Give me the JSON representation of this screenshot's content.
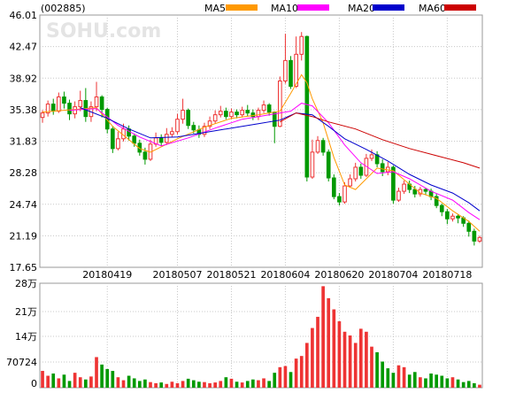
{
  "header": {
    "code": "(002885)",
    "watermark": "SOHU.com",
    "legend": [
      {
        "label": "MA5",
        "color": "#ff9900"
      },
      {
        "label": "MA10",
        "color": "#ff00ff"
      },
      {
        "label": "MA20",
        "color": "#0000cc"
      },
      {
        "label": "MA60",
        "color": "#cc0000"
      }
    ]
  },
  "chart_data": [
    {
      "type": "candlestick",
      "y_ticks": [
        "46.01",
        "42.47",
        "38.92",
        "35.38",
        "31.83",
        "28.28",
        "24.74",
        "21.19",
        "17.65"
      ],
      "ylim": [
        17.65,
        46.01
      ],
      "x_ticks": [
        {
          "label": "20180419",
          "index": 12
        },
        {
          "label": "20180507",
          "index": 25
        },
        {
          "label": "20180521",
          "index": 35
        },
        {
          "label": "20180604",
          "index": 45
        },
        {
          "label": "20180620",
          "index": 55
        },
        {
          "label": "20180704",
          "index": 65
        },
        {
          "label": "20180718",
          "index": 75
        }
      ],
      "colors": {
        "up": "#ee3333",
        "down": "#009900"
      },
      "candles": [
        [
          34.5,
          35.0,
          33.9,
          35.3
        ],
        [
          35.0,
          36.0,
          34.6,
          36.4
        ],
        [
          36.0,
          35.2,
          34.8,
          36.6
        ],
        [
          35.2,
          36.8,
          35.0,
          37.3
        ],
        [
          36.8,
          36.1,
          35.5,
          37.4
        ],
        [
          36.1,
          34.9,
          34.2,
          36.5
        ],
        [
          34.9,
          35.7,
          34.4,
          36.3
        ],
        [
          35.7,
          36.4,
          35.2,
          37.5
        ],
        [
          36.4,
          34.6,
          34.0,
          37.8
        ],
        [
          34.6,
          35.7,
          34.0,
          36.3
        ],
        [
          35.7,
          36.8,
          35.2,
          38.5
        ],
        [
          36.8,
          35.4,
          34.5,
          37.0
        ],
        [
          35.4,
          33.2,
          32.7,
          35.6
        ],
        [
          33.2,
          31.0,
          30.5,
          33.5
        ],
        [
          31.0,
          32.1,
          30.8,
          32.9
        ],
        [
          32.1,
          33.2,
          31.8,
          33.8
        ],
        [
          33.2,
          32.4,
          31.9,
          33.6
        ],
        [
          32.4,
          31.6,
          31.2,
          32.7
        ],
        [
          31.6,
          30.6,
          30.2,
          32.0
        ],
        [
          30.6,
          29.8,
          29.2,
          31.1
        ],
        [
          29.8,
          31.5,
          29.6,
          32.0
        ],
        [
          31.5,
          32.2,
          31.2,
          32.8
        ],
        [
          32.2,
          31.7,
          31.3,
          32.6
        ],
        [
          31.7,
          32.6,
          31.4,
          33.3
        ],
        [
          32.6,
          32.9,
          32.3,
          33.4
        ],
        [
          32.9,
          34.3,
          32.6,
          34.9
        ],
        [
          34.3,
          35.3,
          33.8,
          36.6
        ],
        [
          35.3,
          33.6,
          33.2,
          35.5
        ],
        [
          33.6,
          33.1,
          32.7,
          34.0
        ],
        [
          33.1,
          32.6,
          32.2,
          33.6
        ],
        [
          32.6,
          33.5,
          32.3,
          33.9
        ],
        [
          33.5,
          34.1,
          33.2,
          34.6
        ],
        [
          34.1,
          34.8,
          33.8,
          35.3
        ],
        [
          34.8,
          35.2,
          34.5,
          35.8
        ],
        [
          35.2,
          34.6,
          34.3,
          35.6
        ],
        [
          34.6,
          35.1,
          34.3,
          35.5
        ],
        [
          35.1,
          34.8,
          34.4,
          35.4
        ],
        [
          34.8,
          35.3,
          34.5,
          35.7
        ],
        [
          35.3,
          35.0,
          34.6,
          35.9
        ],
        [
          35.0,
          34.6,
          34.2,
          35.4
        ],
        [
          34.6,
          35.3,
          34.2,
          35.6
        ],
        [
          35.3,
          35.9,
          35.0,
          36.4
        ],
        [
          35.9,
          35.1,
          34.7,
          36.1
        ],
        [
          35.1,
          33.5,
          31.6,
          35.2
        ],
        [
          33.5,
          38.6,
          33.4,
          39.1
        ],
        [
          38.6,
          40.9,
          38.3,
          43.9
        ],
        [
          40.9,
          38.0,
          37.7,
          41.4
        ],
        [
          38.0,
          41.6,
          37.8,
          43.6
        ],
        [
          41.6,
          43.6,
          40.9,
          44.1
        ],
        [
          43.6,
          27.8,
          27.3,
          43.7
        ],
        [
          27.8,
          30.6,
          27.6,
          32.0
        ],
        [
          30.6,
          31.9,
          30.4,
          32.4
        ],
        [
          31.9,
          30.6,
          30.2,
          32.2
        ],
        [
          30.6,
          27.7,
          27.3,
          30.9
        ],
        [
          27.7,
          25.6,
          25.3,
          28.1
        ],
        [
          25.6,
          25.0,
          24.6,
          26.0
        ],
        [
          25.0,
          26.8,
          24.8,
          27.2
        ],
        [
          26.8,
          27.6,
          26.6,
          28.1
        ],
        [
          27.6,
          28.9,
          27.3,
          29.4
        ],
        [
          28.9,
          28.0,
          27.6,
          29.3
        ],
        [
          28.0,
          29.9,
          27.8,
          30.4
        ],
        [
          29.9,
          30.3,
          29.6,
          30.9
        ],
        [
          30.3,
          29.3,
          28.9,
          30.7
        ],
        [
          29.3,
          28.4,
          27.9,
          29.8
        ],
        [
          28.4,
          28.9,
          28.0,
          29.5
        ],
        [
          28.9,
          25.2,
          24.8,
          29.1
        ],
        [
          25.2,
          26.2,
          25.0,
          26.6
        ],
        [
          26.2,
          27.0,
          25.9,
          27.4
        ],
        [
          27.0,
          26.4,
          26.0,
          27.4
        ],
        [
          26.4,
          25.9,
          25.5,
          26.8
        ],
        [
          25.9,
          26.4,
          25.6,
          26.7
        ],
        [
          26.4,
          26.2,
          25.8,
          26.6
        ],
        [
          26.2,
          25.6,
          25.2,
          26.5
        ],
        [
          25.6,
          24.6,
          24.3,
          25.9
        ],
        [
          24.6,
          23.9,
          23.4,
          24.8
        ],
        [
          23.9,
          23.1,
          22.5,
          24.2
        ],
        [
          23.1,
          23.4,
          22.8,
          23.7
        ],
        [
          23.4,
          23.2,
          22.6,
          23.6
        ],
        [
          23.2,
          22.6,
          22.2,
          23.4
        ],
        [
          22.6,
          21.7,
          21.1,
          22.9
        ],
        [
          21.7,
          20.6,
          20.1,
          22.0
        ],
        [
          20.6,
          21.0,
          20.4,
          21.2
        ]
      ],
      "ma": {
        "MA5": [
          [
            0,
            35.1
          ],
          [
            10,
            35.6
          ],
          [
            13,
            33.5
          ],
          [
            18,
            31.0
          ],
          [
            20,
            30.6
          ],
          [
            25,
            32.1
          ],
          [
            30,
            33.4
          ],
          [
            35,
            34.4
          ],
          [
            40,
            34.8
          ],
          [
            44,
            35.2
          ],
          [
            46,
            37.2
          ],
          [
            48,
            39.3
          ],
          [
            49,
            38.4
          ],
          [
            50,
            36.6
          ],
          [
            52,
            33.9
          ],
          [
            54,
            30.0
          ],
          [
            56,
            26.9
          ],
          [
            58,
            26.4
          ],
          [
            60,
            27.6
          ],
          [
            62,
            28.8
          ],
          [
            65,
            28.5
          ],
          [
            67,
            27.5
          ],
          [
            70,
            26.0
          ],
          [
            73,
            25.4
          ],
          [
            76,
            24.0
          ],
          [
            79,
            22.8
          ],
          [
            81,
            21.7
          ]
        ],
        "MA10": [
          [
            5,
            35.3
          ],
          [
            10,
            35.5
          ],
          [
            14,
            33.6
          ],
          [
            18,
            32.3
          ],
          [
            22,
            31.3
          ],
          [
            27,
            32.2
          ],
          [
            32,
            33.3
          ],
          [
            37,
            34.3
          ],
          [
            42,
            34.8
          ],
          [
            46,
            35.2
          ],
          [
            48,
            36.1
          ],
          [
            50,
            35.8
          ],
          [
            53,
            33.9
          ],
          [
            56,
            31.4
          ],
          [
            59,
            29.4
          ],
          [
            62,
            28.2
          ],
          [
            65,
            28.4
          ],
          [
            68,
            27.6
          ],
          [
            72,
            26.2
          ],
          [
            76,
            25.2
          ],
          [
            79,
            23.8
          ],
          [
            81,
            23.0
          ]
        ],
        "MA20": [
          [
            7,
            35.6
          ],
          [
            12,
            34.4
          ],
          [
            16,
            33.2
          ],
          [
            20,
            32.2
          ],
          [
            25,
            32.3
          ],
          [
            30,
            32.8
          ],
          [
            35,
            33.3
          ],
          [
            40,
            33.8
          ],
          [
            44,
            34.2
          ],
          [
            47,
            35.0
          ],
          [
            50,
            34.8
          ],
          [
            53,
            33.5
          ],
          [
            56,
            32.1
          ],
          [
            60,
            30.9
          ],
          [
            64,
            29.6
          ],
          [
            68,
            28.1
          ],
          [
            72,
            26.9
          ],
          [
            76,
            26.0
          ],
          [
            79,
            24.9
          ],
          [
            81,
            24.0
          ]
        ],
        "MA60": [
          [
            44,
            34.0
          ],
          [
            47,
            35.0
          ],
          [
            50,
            34.6
          ],
          [
            53,
            34.0
          ],
          [
            58,
            33.2
          ],
          [
            63,
            32.0
          ],
          [
            68,
            31.0
          ],
          [
            73,
            30.2
          ],
          [
            78,
            29.4
          ],
          [
            81,
            28.8
          ]
        ]
      }
    },
    {
      "type": "bar",
      "y_ticks": [
        "28万",
        "21万",
        "14万",
        "70724",
        "0"
      ],
      "ylim": [
        0,
        280000
      ],
      "values": [
        45000,
        32000,
        38000,
        25000,
        35000,
        18000,
        40000,
        28000,
        22000,
        30000,
        82000,
        62000,
        50000,
        45000,
        28000,
        20000,
        32000,
        25000,
        18000,
        22000,
        15000,
        12000,
        14000,
        10000,
        16000,
        12000,
        18000,
        24000,
        20000,
        16000,
        15000,
        12000,
        14000,
        18000,
        28000,
        24000,
        16000,
        14000,
        18000,
        22000,
        20000,
        25000,
        18000,
        40000,
        55000,
        58000,
        42000,
        78000,
        85000,
        120000,
        160000,
        190000,
        272000,
        240000,
        210000,
        178000,
        150000,
        140000,
        120000,
        158000,
        150000,
        110000,
        95000,
        70000,
        52000,
        40000,
        60000,
        55000,
        35000,
        42000,
        28000,
        25000,
        38000,
        35000,
        32000,
        25000,
        28000,
        22000,
        15000,
        18000,
        12000,
        8000
      ],
      "up": [
        1,
        1,
        0,
        1,
        0,
        0,
        1,
        1,
        0,
        1,
        1,
        0,
        0,
        0,
        1,
        1,
        0,
        0,
        0,
        0,
        1,
        1,
        0,
        1,
        1,
        1,
        1,
        0,
        0,
        0,
        1,
        1,
        1,
        1,
        0,
        1,
        0,
        1,
        0,
        0,
        1,
        1,
        0,
        0,
        1,
        1,
        0,
        1,
        1,
        1,
        1,
        1,
        1,
        1,
        1,
        1,
        1,
        1,
        1,
        1,
        1,
        1,
        0,
        0,
        0,
        0,
        1,
        1,
        0,
        0,
        1,
        0,
        0,
        0,
        0,
        0,
        1,
        0,
        0,
        0,
        0,
        1
      ]
    }
  ]
}
